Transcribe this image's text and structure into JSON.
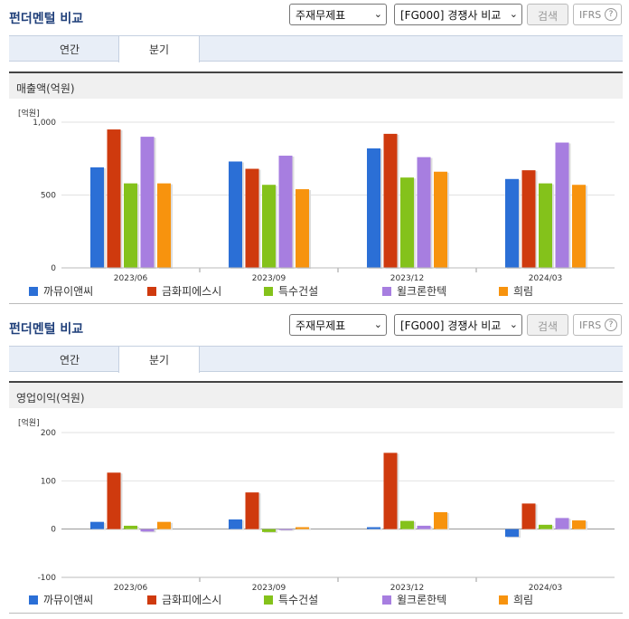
{
  "panels": [
    {
      "title": "펀더멘털 비교",
      "select1": "주재무제표",
      "select2": "[FG000] 경쟁사 비교",
      "search_label": "검색",
      "ifrs_label": "IFRS",
      "ifrs_help": "?",
      "tabs": [
        "연간",
        "분기"
      ],
      "active_tab": "분기",
      "section_title": "매출액(억원)",
      "unit_label": "[억원]"
    },
    {
      "title": "펀더멘털 비교",
      "select1": "주재무제표",
      "select2": "[FG000] 경쟁사 비교",
      "search_label": "검색",
      "ifrs_label": "IFRS",
      "ifrs_help": "?",
      "tabs": [
        "연간",
        "분기"
      ],
      "active_tab": "분기",
      "section_title": "영업이익(억원)",
      "unit_label": "[억원]"
    }
  ],
  "legend": [
    "까뮤이앤씨",
    "금화피에스시",
    "특수건설",
    "윌크론한텍",
    "희림"
  ],
  "colors": {
    "까뮤이앤씨": "#2b6fd6",
    "금화피에스시": "#cf3a0e",
    "특수건설": "#84c21b",
    "윌크론한텍": "#a77ee0",
    "희림": "#f7930e"
  },
  "chart_data": [
    {
      "type": "bar",
      "title": "매출액(억원)",
      "ylabel": "[억원]",
      "categories": [
        "2023/06",
        "2023/09",
        "2023/12",
        "2024/03"
      ],
      "ylim": [
        0,
        1000
      ],
      "yticks": [
        0,
        500,
        1000
      ],
      "ytick_labels": [
        "0",
        "500",
        "1,000"
      ],
      "series": [
        {
          "name": "까뮤이앤씨",
          "values": [
            690,
            730,
            820,
            610
          ]
        },
        {
          "name": "금화피에스시",
          "values": [
            950,
            680,
            920,
            670
          ]
        },
        {
          "name": "특수건설",
          "values": [
            580,
            570,
            620,
            580
          ]
        },
        {
          "name": "윌크론한텍",
          "values": [
            900,
            770,
            760,
            860
          ]
        },
        {
          "name": "희림",
          "values": [
            580,
            540,
            660,
            570
          ]
        }
      ]
    },
    {
      "type": "bar",
      "title": "영업이익(억원)",
      "ylabel": "[억원]",
      "categories": [
        "2023/06",
        "2023/09",
        "2023/12",
        "2024/03"
      ],
      "ylim": [
        -100,
        200
      ],
      "yticks": [
        -100,
        0,
        100,
        200
      ],
      "ytick_labels": [
        "-100",
        "0",
        "100",
        "200"
      ],
      "series": [
        {
          "name": "까뮤이앤씨",
          "values": [
            15,
            20,
            4,
            -16
          ]
        },
        {
          "name": "금화피에스시",
          "values": [
            117,
            76,
            158,
            53
          ]
        },
        {
          "name": "특수건설",
          "values": [
            7,
            -6,
            17,
            9
          ]
        },
        {
          "name": "윌크론한텍",
          "values": [
            -5,
            0,
            7,
            23
          ]
        },
        {
          "name": "희림",
          "values": [
            15,
            4,
            35,
            18
          ]
        }
      ]
    }
  ]
}
